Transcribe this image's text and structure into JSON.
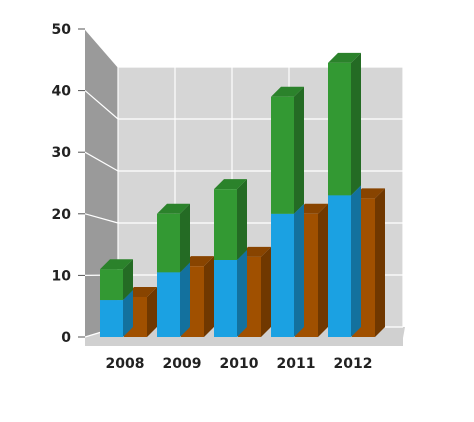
{
  "chart_data": {
    "type": "bar",
    "stacked_3d": true,
    "categories": [
      "2008",
      "2009",
      "2010",
      "2011",
      "2012"
    ],
    "series": [
      {
        "values": [
          6,
          10.5,
          12.5,
          20,
          23
        ],
        "color": "#1BA1E2",
        "stack": "a"
      },
      {
        "values": [
          5,
          9.5,
          11.5,
          19,
          21.5
        ],
        "color": "#339933",
        "stack": "a"
      },
      {
        "values": [
          6.5,
          11.5,
          13,
          20,
          22.5
        ],
        "color": "#A05000",
        "stack": "b"
      }
    ],
    "yticks": [
      "0",
      "10",
      "20",
      "30",
      "40",
      "50"
    ],
    "ylim": [
      0,
      50
    ],
    "title": "",
    "xlabel": "",
    "ylabel": "",
    "grid": true,
    "legend": "none",
    "colors": {
      "back_wall": "#D6D6D6",
      "side_wall": "#9A9A9A",
      "floor": "#D0D0D0",
      "grid": "#FFFFFF"
    }
  }
}
